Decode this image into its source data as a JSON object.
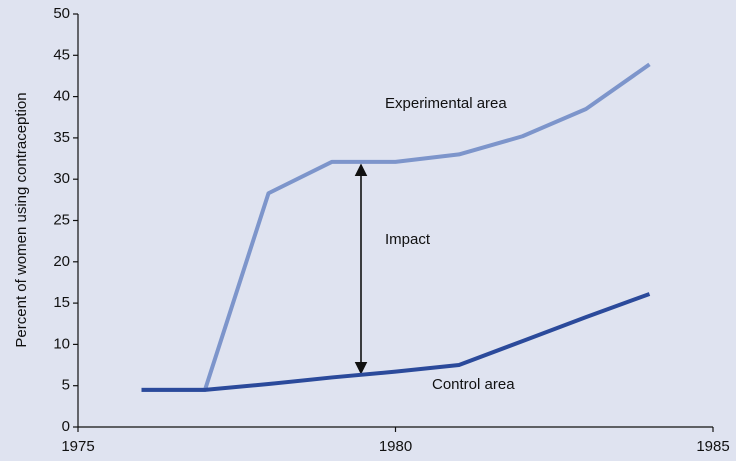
{
  "chart_data": {
    "type": "line",
    "y_label": "Percent of women using contraception",
    "x": [
      1976,
      1977,
      1978,
      1979,
      1980,
      1981,
      1982,
      1983,
      1984
    ],
    "series": [
      {
        "name": "Experimental area",
        "color": "#7d95cb",
        "values": [
          4.5,
          4.5,
          28.3,
          32.1,
          32.1,
          33,
          35.2,
          38.5,
          43.9
        ]
      },
      {
        "name": "Control area",
        "color": "#2b4a9b",
        "values": [
          4.5,
          4.5,
          5.2,
          6.0,
          6.7,
          7.5,
          10.4,
          13.3,
          16.1
        ]
      }
    ],
    "annotations": [
      "Impact"
    ],
    "xlim": [
      1975,
      1985
    ],
    "xticks": [
      1975,
      1980,
      1985
    ],
    "ylim": [
      0,
      50
    ],
    "yticks": [
      0,
      5,
      10,
      15,
      20,
      25,
      30,
      35,
      40,
      45,
      50
    ],
    "grid": false
  }
}
